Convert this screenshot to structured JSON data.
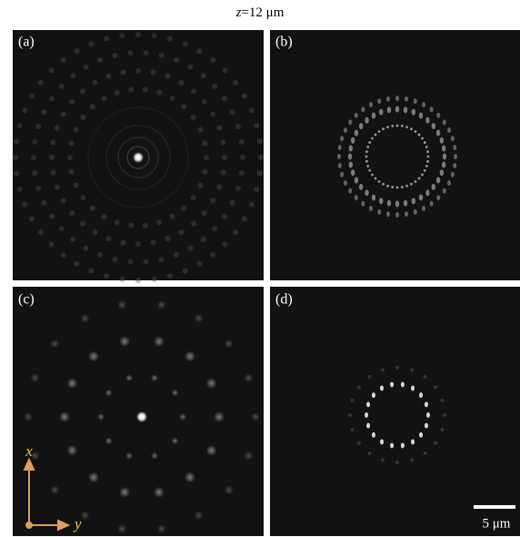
{
  "title": {
    "variable": "z",
    "text": "=12 μm"
  },
  "panels": [
    {
      "label": "(a)"
    },
    {
      "label": "(b)"
    },
    {
      "label": "(c)"
    },
    {
      "label": "(d)"
    }
  ],
  "axes": {
    "x": "x",
    "y": "y"
  },
  "scale_bar": {
    "label": "5 μm"
  }
}
